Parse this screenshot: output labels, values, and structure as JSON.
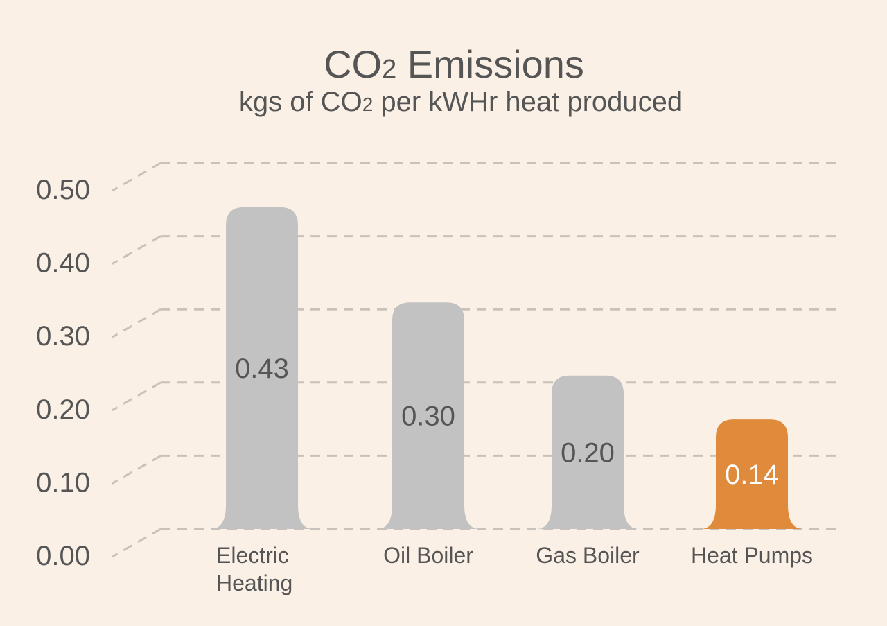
{
  "chart_data": {
    "type": "bar",
    "title_main": "CO",
    "title_sub": "2",
    "title_rest": " Emissions",
    "subtitle_main": "kgs of CO",
    "subtitle_sub": "2",
    "subtitle_rest": " per kWHr heat produced",
    "categories": [
      [
        "Electric",
        "Heating"
      ],
      [
        "Oil Boiler"
      ],
      [
        "Gas Boiler"
      ],
      [
        "Heat Pumps"
      ]
    ],
    "values": [
      0.43,
      0.3,
      0.2,
      0.14
    ],
    "value_labels": [
      "0.43",
      "0.30",
      "0.20",
      "0.14"
    ],
    "highlight_index": 3,
    "yticks": [
      "0.00",
      "0.10",
      "0.20",
      "0.30",
      "0.40",
      "0.50"
    ],
    "ylim": [
      0,
      0.5
    ],
    "grid": true,
    "colors": {
      "bar": "#c2c2c2",
      "highlight": "#e08a3c",
      "grid": "#c8c2bb",
      "text": "#555555",
      "highlight_label": "#ffffff"
    }
  }
}
